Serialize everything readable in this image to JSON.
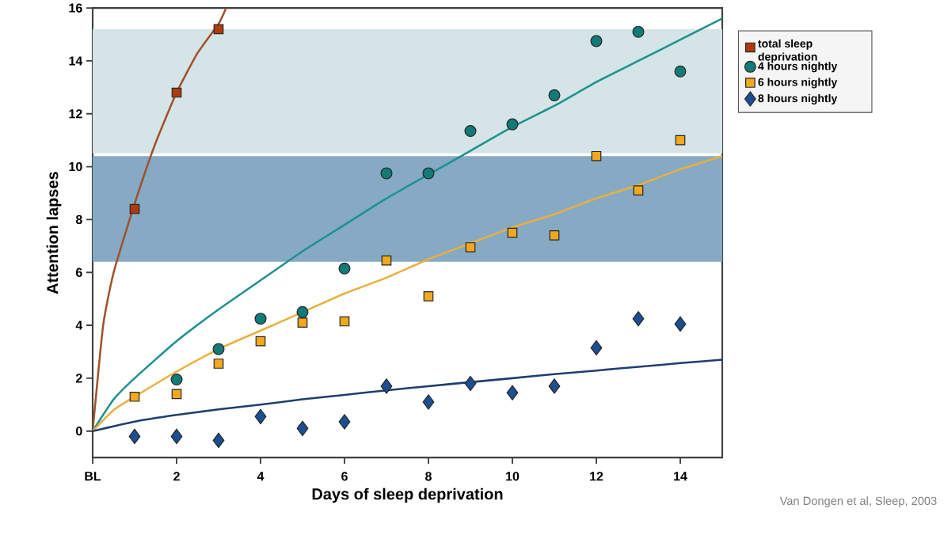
{
  "chart_data": {
    "type": "scatter",
    "xlabel": "Days of sleep deprivation",
    "ylabel": "Attention lapses",
    "annotations": [
      "Van Dongen et al, Sleep, 2003"
    ],
    "xlim": [
      0,
      15
    ],
    "ylim": [
      -1,
      16
    ],
    "xticks": [
      {
        "value": 0,
        "label": "BL"
      },
      2,
      4,
      6,
      8,
      10,
      12,
      14
    ],
    "yticks": [
      0,
      2,
      4,
      6,
      8,
      10,
      12,
      14,
      16
    ],
    "legend": "right",
    "bands": [
      {
        "axis": "y",
        "from": 10.5,
        "to": 15.2,
        "color": "#d5e4e7"
      },
      {
        "axis": "y",
        "from": 6.4,
        "to": 10.4,
        "color": "#86a9c4"
      }
    ],
    "series": [
      {
        "type": "line",
        "color": "#a0522d",
        "x": [
          0,
          0.25,
          0.5,
          1,
          1.5,
          2,
          2.5,
          3,
          3.18
        ],
        "values": [
          0,
          4,
          6,
          8.6,
          10.9,
          12.8,
          14.3,
          15.4,
          16
        ]
      },
      {
        "type": "line",
        "color": "#20908f",
        "x": [
          0,
          0.5,
          1,
          2,
          3,
          4,
          5,
          6,
          7,
          8,
          9,
          10,
          11,
          12,
          13,
          14,
          15
        ],
        "values": [
          0,
          1.2,
          2.0,
          3.4,
          4.6,
          5.7,
          6.8,
          7.8,
          8.8,
          9.7,
          10.6,
          11.5,
          12.3,
          13.2,
          14.0,
          14.8,
          15.6
        ]
      },
      {
        "type": "line",
        "color": "#e8b040",
        "x": [
          0,
          0.5,
          1,
          2,
          3,
          4,
          5,
          6,
          7,
          8,
          9,
          10,
          11,
          12,
          13,
          14,
          15
        ],
        "values": [
          0,
          0.8,
          1.3,
          2.25,
          3.1,
          3.8,
          4.5,
          5.2,
          5.8,
          6.5,
          7.1,
          7.7,
          8.2,
          8.8,
          9.3,
          9.9,
          10.4
        ]
      },
      {
        "type": "line",
        "color": "#1f3f6f",
        "x": [
          0,
          1,
          2,
          3,
          4,
          5,
          6,
          7,
          8,
          9,
          10,
          11,
          12,
          13,
          14,
          15
        ],
        "values": [
          0,
          0.36,
          0.61,
          0.82,
          1.0,
          1.2,
          1.37,
          1.54,
          1.7,
          1.85,
          2.0,
          2.15,
          2.29,
          2.43,
          2.57,
          2.7
        ]
      },
      {
        "type": "scatter",
        "name": "total sleep deprivation",
        "color": "#b03a0c",
        "marker": "square",
        "x": [
          1,
          2,
          3
        ],
        "values": [
          8.4,
          12.8,
          15.2
        ]
      },
      {
        "type": "scatter",
        "name": "4 hours nightly",
        "color": "#137a78",
        "marker": "circle",
        "x": [
          2,
          3,
          4,
          5,
          6,
          7,
          8,
          9,
          10,
          11,
          12,
          13,
          14
        ],
        "values": [
          1.95,
          3.1,
          4.25,
          4.5,
          6.15,
          9.75,
          9.75,
          11.35,
          11.6,
          12.7,
          14.75,
          15.1,
          13.6
        ]
      },
      {
        "type": "scatter",
        "name": "6 hours nightly",
        "color": "#f2a81e",
        "marker": "square",
        "x": [
          1,
          2,
          3,
          4,
          5,
          6,
          7,
          8,
          9,
          10,
          11,
          12,
          13,
          14
        ],
        "values": [
          1.3,
          1.4,
          2.55,
          3.4,
          4.1,
          4.15,
          6.45,
          5.1,
          6.95,
          7.5,
          7.4,
          10.4,
          9.1,
          11.0
        ]
      },
      {
        "type": "scatter",
        "name": "8 hours nightly",
        "color": "#1c4f91",
        "marker": "diamond",
        "x": [
          1,
          2,
          3,
          4,
          5,
          6,
          7,
          8,
          9,
          10,
          11,
          12,
          13,
          14
        ],
        "values": [
          -0.2,
          -0.2,
          -0.35,
          0.55,
          0.1,
          0.35,
          1.7,
          1.1,
          1.8,
          1.45,
          1.7,
          3.15,
          4.25,
          4.05
        ]
      }
    ]
  }
}
